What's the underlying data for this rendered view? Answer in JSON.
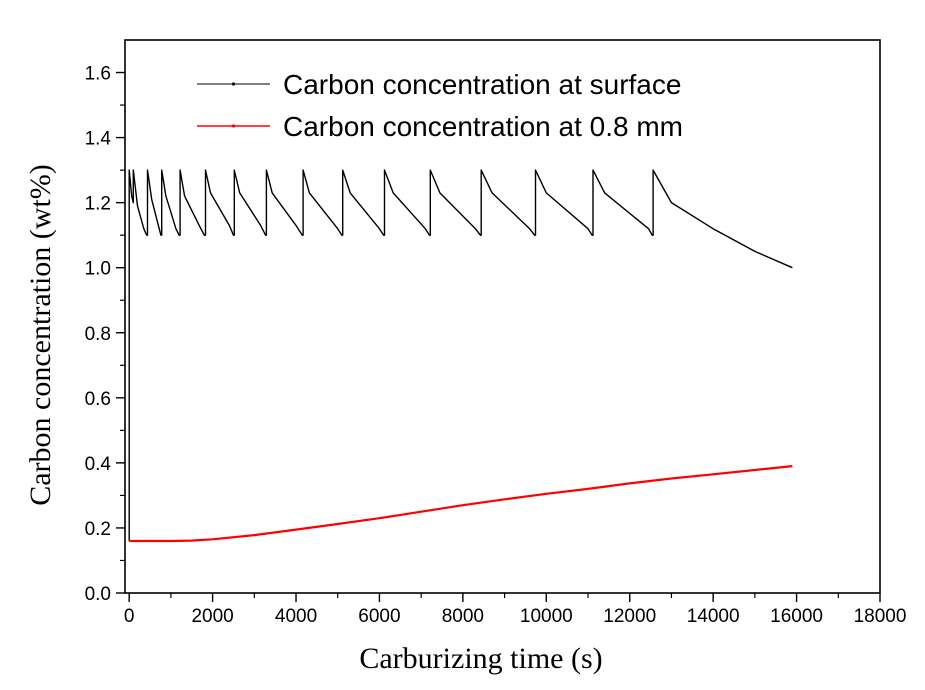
{
  "chart_data": {
    "type": "line",
    "title": "",
    "xlabel": "Carburizing time (s)",
    "ylabel": "Carbon concentration (wt%)",
    "xlim": [
      -100,
      18000
    ],
    "ylim": [
      0.0,
      1.7
    ],
    "xticks": [
      0,
      2000,
      4000,
      6000,
      8000,
      10000,
      12000,
      14000,
      16000,
      18000
    ],
    "xtick_labels": [
      "0",
      "2000",
      "4000",
      "6000",
      "8000",
      "10000",
      "12000",
      "14000",
      "16000",
      "18000"
    ],
    "yticks": [
      0.0,
      0.2,
      0.4,
      0.6,
      0.8,
      1.0,
      1.2,
      1.4,
      1.6
    ],
    "ytick_labels": [
      "0.0",
      "0.2",
      "0.4",
      "0.6",
      "0.8",
      "1.0",
      "1.2",
      "1.4",
      "1.6"
    ],
    "grid": false,
    "legend_position": "top-right",
    "series": [
      {
        "name": "Carbon concentration at surface",
        "color": "#000000",
        "x": [
          0,
          0,
          60,
          100,
          100,
          200,
          350,
          420,
          440,
          440,
          540,
          720,
          760,
          780,
          780,
          880,
          1120,
          1200,
          1220,
          1220,
          1330,
          1680,
          1800,
          1830,
          1830,
          1950,
          2400,
          2500,
          2520,
          2520,
          2650,
          3150,
          3270,
          3290,
          3290,
          3430,
          4000,
          4150,
          4170,
          4170,
          4320,
          5000,
          5100,
          5120,
          5120,
          5300,
          6000,
          6100,
          6120,
          6120,
          6330,
          7100,
          7200,
          7220,
          7220,
          7450,
          8300,
          8420,
          8440,
          8440,
          8700,
          9600,
          9720,
          9740,
          9740,
          10000,
          11000,
          11100,
          11120,
          11120,
          11400,
          12450,
          12540,
          12560,
          12560,
          13000,
          14000,
          15000,
          15900
        ],
        "y": [
          0.16,
          1.3,
          1.22,
          1.2,
          1.3,
          1.19,
          1.12,
          1.1,
          1.1,
          1.3,
          1.21,
          1.12,
          1.1,
          1.1,
          1.3,
          1.22,
          1.12,
          1.1,
          1.1,
          1.3,
          1.22,
          1.13,
          1.1,
          1.1,
          1.3,
          1.23,
          1.13,
          1.1,
          1.1,
          1.3,
          1.23,
          1.13,
          1.1,
          1.1,
          1.3,
          1.23,
          1.13,
          1.1,
          1.1,
          1.3,
          1.23,
          1.12,
          1.1,
          1.1,
          1.3,
          1.23,
          1.12,
          1.1,
          1.1,
          1.3,
          1.23,
          1.12,
          1.1,
          1.1,
          1.3,
          1.23,
          1.12,
          1.1,
          1.1,
          1.3,
          1.23,
          1.12,
          1.1,
          1.1,
          1.3,
          1.23,
          1.12,
          1.1,
          1.1,
          1.3,
          1.23,
          1.12,
          1.1,
          1.1,
          1.3,
          1.2,
          1.12,
          1.05,
          1.0
        ]
      },
      {
        "name": "Carbon concentration at 0.8 mm",
        "color": "#ff0000",
        "x": [
          0,
          1000,
          1500,
          2000,
          3000,
          4000,
          5000,
          6000,
          7000,
          8000,
          9000,
          10000,
          11000,
          12000,
          13000,
          14000,
          15000,
          15900
        ],
        "y": [
          0.16,
          0.16,
          0.161,
          0.165,
          0.178,
          0.195,
          0.212,
          0.23,
          0.25,
          0.27,
          0.288,
          0.305,
          0.32,
          0.337,
          0.352,
          0.365,
          0.378,
          0.39
        ]
      }
    ]
  }
}
